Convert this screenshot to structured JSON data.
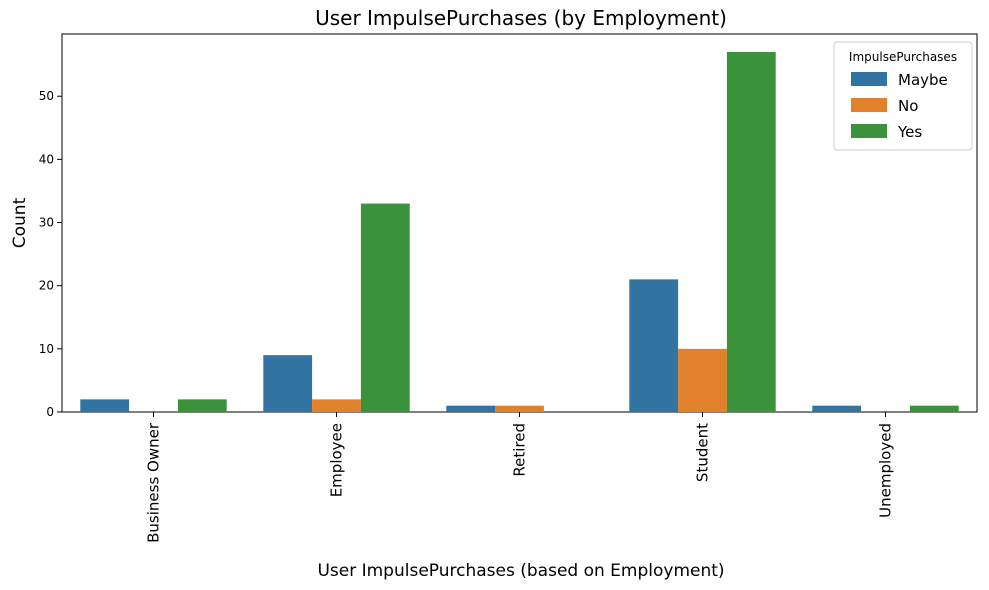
{
  "chart_data": {
    "type": "bar",
    "title": "User ImpulsePurchases (by Employment)",
    "xlabel": "User ImpulsePurchases (based on Employment)",
    "ylabel": "Count",
    "categories": [
      "Business Owner",
      "Employee",
      "Retired",
      "Student",
      "Unemployed"
    ],
    "series": [
      {
        "name": "Maybe",
        "color": "#3274a1",
        "values": [
          2,
          9,
          1,
          21,
          1
        ]
      },
      {
        "name": "No",
        "color": "#e1812c",
        "values": [
          0,
          2,
          1,
          10,
          0
        ]
      },
      {
        "name": "Yes",
        "color": "#3a923a",
        "values": [
          2,
          33,
          0,
          57,
          1
        ]
      }
    ],
    "yticks": [
      0,
      10,
      20,
      30,
      40,
      50
    ],
    "ylim": [
      0,
      59.85
    ],
    "legend": {
      "title": "ImpulsePurchases",
      "placement": "top-right"
    },
    "grid": false
  }
}
